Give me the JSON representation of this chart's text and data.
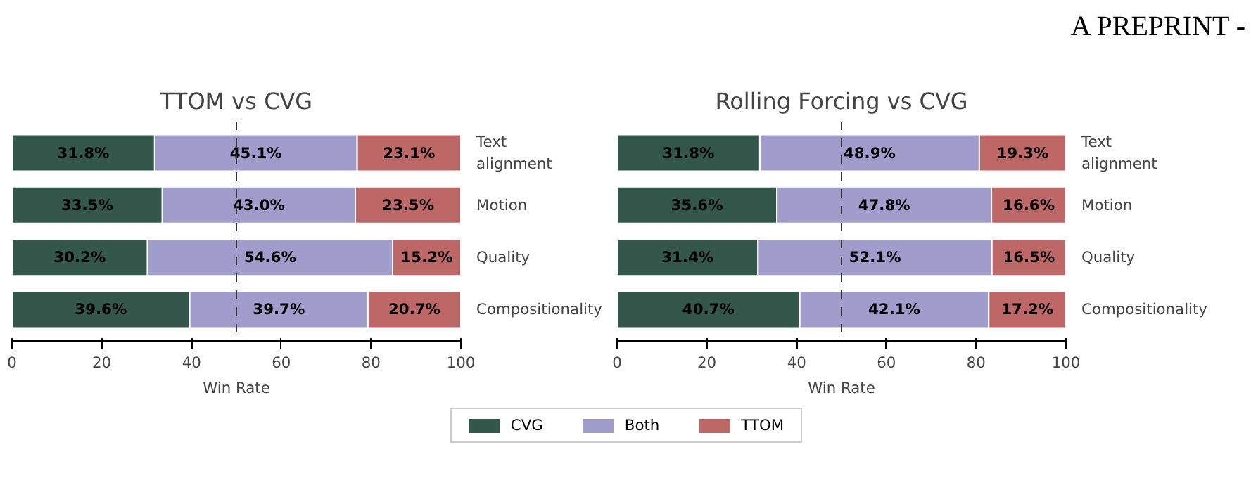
{
  "chart_data": [
    {
      "type": "bar",
      "orientation": "horizontal",
      "stacked": true,
      "title": "TTOM vs CVG",
      "xlabel": "Win Rate",
      "categories": [
        "Text alignment",
        "Motion",
        "Quality",
        "Compositionality"
      ],
      "series": [
        {
          "name": "CVG",
          "color": "#33574a",
          "values": [
            31.8,
            33.5,
            30.2,
            39.6
          ],
          "value_labels": [
            "31.8%",
            "33.5%",
            "30.2%",
            "39.6%"
          ]
        },
        {
          "name": "Both",
          "color": "#a09ccb",
          "values": [
            45.1,
            43.0,
            54.6,
            39.7
          ],
          "value_labels": [
            "45.1%",
            "43.0%",
            "54.6%",
            "39.7%"
          ]
        },
        {
          "name": "TTOM",
          "color": "#bd6766",
          "values": [
            23.1,
            23.5,
            15.2,
            20.7
          ],
          "value_labels": [
            "23.1%",
            "23.5%",
            "15.2%",
            "20.7%"
          ]
        }
      ],
      "xlim": [
        0,
        100
      ],
      "xticks": [
        0,
        20,
        40,
        60,
        80,
        100
      ],
      "legend": "bottom",
      "grid": false,
      "ref_lines": [
        {
          "axis": "x",
          "value": 50,
          "line_style": "dashed",
          "color": "#333333"
        }
      ]
    },
    {
      "type": "bar",
      "orientation": "horizontal",
      "stacked": true,
      "title": "Rolling Forcing vs CVG",
      "xlabel": "Win Rate",
      "categories": [
        "Text alignment",
        "Motion",
        "Quality",
        "Compositionality"
      ],
      "series": [
        {
          "color": "#33574a",
          "values": [
            31.8,
            35.6,
            31.4,
            40.7
          ],
          "value_labels": [
            "31.8%",
            "35.6%",
            "31.4%",
            "40.7%"
          ]
        },
        {
          "color": "#a09ccb",
          "values": [
            48.9,
            47.8,
            52.1,
            42.1
          ],
          "value_labels": [
            "48.9%",
            "47.8%",
            "52.1%",
            "42.1%"
          ]
        },
        {
          "color": "#bd6766",
          "values": [
            19.3,
            16.6,
            16.5,
            17.2
          ],
          "value_labels": [
            "19.3%",
            "16.6%",
            "16.5%",
            "17.2%"
          ]
        }
      ],
      "xlim": [
        0,
        100
      ],
      "xticks": [
        0,
        20,
        40,
        60,
        80,
        100
      ],
      "grid": false,
      "ref_lines": [
        {
          "axis": "x",
          "value": 50,
          "line_style": "dashed",
          "color": "#333333"
        }
      ],
      "annotations": [
        "A PREPRINT -"
      ]
    }
  ]
}
